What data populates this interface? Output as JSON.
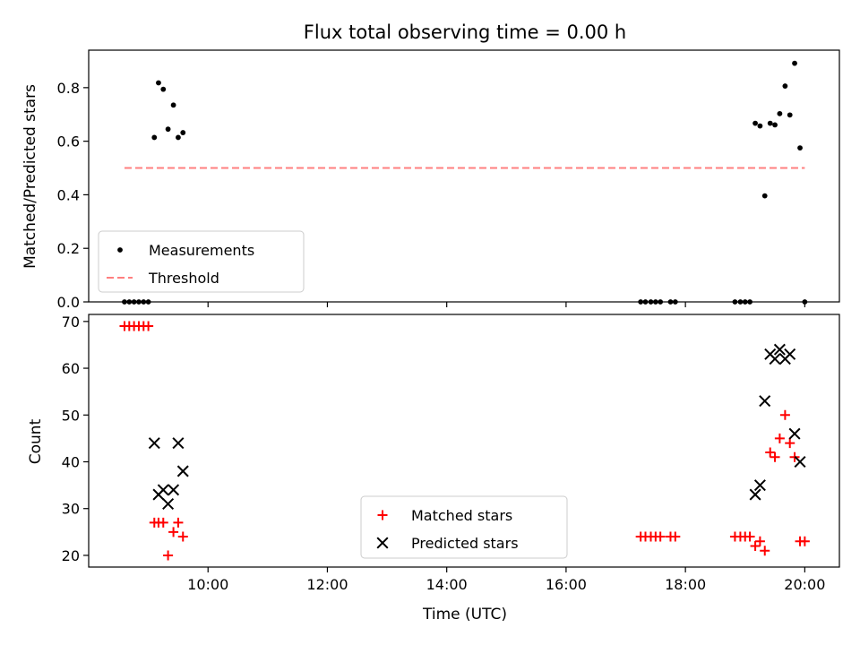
{
  "chart_data": [
    {
      "type": "scatter",
      "title": "Flux total observing time = 0.00 h",
      "xlabel": "",
      "ylabel": "Matched/Predicted stars",
      "xlim": [
        8.0,
        20.58
      ],
      "ylim": [
        0.0,
        0.94
      ],
      "yticks": [
        0.0,
        0.2,
        0.4,
        0.6,
        0.8
      ],
      "ytick_labels": [
        "0.0",
        "0.2",
        "0.4",
        "0.6",
        "0.8"
      ],
      "xticks": [
        10,
        12,
        14,
        16,
        18,
        20
      ],
      "legend": {
        "placement": "lower-left",
        "entries": [
          "Measurements",
          "Threshold"
        ]
      },
      "series": [
        {
          "name": "Measurements",
          "marker": "dot",
          "color": "#000000",
          "points": [
            [
              8.6,
              0.0
            ],
            [
              8.68,
              0.0
            ],
            [
              8.76,
              0.0
            ],
            [
              8.84,
              0.0
            ],
            [
              8.92,
              0.0
            ],
            [
              9.0,
              0.0
            ],
            [
              9.1,
              0.614
            ],
            [
              9.17,
              0.818
            ],
            [
              9.25,
              0.794
            ],
            [
              9.33,
              0.645
            ],
            [
              9.42,
              0.735
            ],
            [
              9.5,
              0.614
            ],
            [
              9.58,
              0.632
            ],
            [
              17.25,
              0.0
            ],
            [
              17.33,
              0.0
            ],
            [
              17.42,
              0.0
            ],
            [
              17.5,
              0.0
            ],
            [
              17.58,
              0.0
            ],
            [
              17.75,
              0.0
            ],
            [
              17.83,
              0.0
            ],
            [
              18.83,
              0.0
            ],
            [
              18.92,
              0.0
            ],
            [
              19.0,
              0.0
            ],
            [
              19.08,
              0.0
            ],
            [
              19.17,
              0.667
            ],
            [
              19.25,
              0.657
            ],
            [
              19.33,
              0.396
            ],
            [
              19.42,
              0.667
            ],
            [
              19.5,
              0.661
            ],
            [
              19.58,
              0.703
            ],
            [
              19.67,
              0.806
            ],
            [
              19.75,
              0.698
            ],
            [
              19.83,
              0.891
            ],
            [
              19.92,
              0.575
            ],
            [
              20.0,
              0.0
            ]
          ]
        },
        {
          "name": "Threshold",
          "style": "dashed",
          "color": "#ff7f7f",
          "points": [
            [
              8.6,
              0.5
            ],
            [
              20.0,
              0.5
            ]
          ]
        }
      ]
    },
    {
      "type": "scatter",
      "title": "",
      "xlabel": "Time (UTC)",
      "ylabel": "Count",
      "xlim": [
        8.0,
        20.58
      ],
      "ylim": [
        17.5,
        71.5
      ],
      "yticks": [
        20,
        30,
        40,
        50,
        60,
        70
      ],
      "ytick_labels": [
        "20",
        "30",
        "40",
        "50",
        "60",
        "70"
      ],
      "xticks": [
        10,
        12,
        14,
        16,
        18,
        20
      ],
      "xtick_labels": [
        "10:00",
        "12:00",
        "14:00",
        "16:00",
        "18:00",
        "20:00"
      ],
      "legend": {
        "placement": "lower-center",
        "entries": [
          "Matched stars",
          "Predicted stars"
        ]
      },
      "series": [
        {
          "name": "Matched stars",
          "marker": "plus",
          "color": "#ff0000",
          "points": [
            [
              8.6,
              69
            ],
            [
              8.68,
              69
            ],
            [
              8.76,
              69
            ],
            [
              8.84,
              69
            ],
            [
              8.92,
              69
            ],
            [
              9.0,
              69
            ],
            [
              9.1,
              27
            ],
            [
              9.17,
              27
            ],
            [
              9.25,
              27
            ],
            [
              9.33,
              20
            ],
            [
              9.42,
              25
            ],
            [
              9.5,
              27
            ],
            [
              9.58,
              24
            ],
            [
              17.25,
              24
            ],
            [
              17.33,
              24
            ],
            [
              17.42,
              24
            ],
            [
              17.5,
              24
            ],
            [
              17.58,
              24
            ],
            [
              17.75,
              24
            ],
            [
              17.83,
              24
            ],
            [
              18.83,
              24
            ],
            [
              18.92,
              24
            ],
            [
              19.0,
              24
            ],
            [
              19.08,
              24
            ],
            [
              19.17,
              22
            ],
            [
              19.25,
              23
            ],
            [
              19.33,
              21
            ],
            [
              19.42,
              42
            ],
            [
              19.5,
              41
            ],
            [
              19.58,
              45
            ],
            [
              19.67,
              50
            ],
            [
              19.75,
              44
            ],
            [
              19.83,
              41
            ],
            [
              19.92,
              23
            ],
            [
              20.0,
              23
            ]
          ]
        },
        {
          "name": "Predicted stars",
          "marker": "x",
          "color": "#000000",
          "points": [
            [
              9.1,
              44
            ],
            [
              9.17,
              33
            ],
            [
              9.25,
              34
            ],
            [
              9.33,
              31
            ],
            [
              9.42,
              34
            ],
            [
              9.5,
              44
            ],
            [
              9.58,
              38
            ],
            [
              19.17,
              33
            ],
            [
              19.25,
              35
            ],
            [
              19.33,
              53
            ],
            [
              19.42,
              63
            ],
            [
              19.5,
              62
            ],
            [
              19.58,
              64
            ],
            [
              19.67,
              62
            ],
            [
              19.75,
              63
            ],
            [
              19.83,
              46
            ],
            [
              19.92,
              40
            ]
          ]
        }
      ]
    }
  ]
}
